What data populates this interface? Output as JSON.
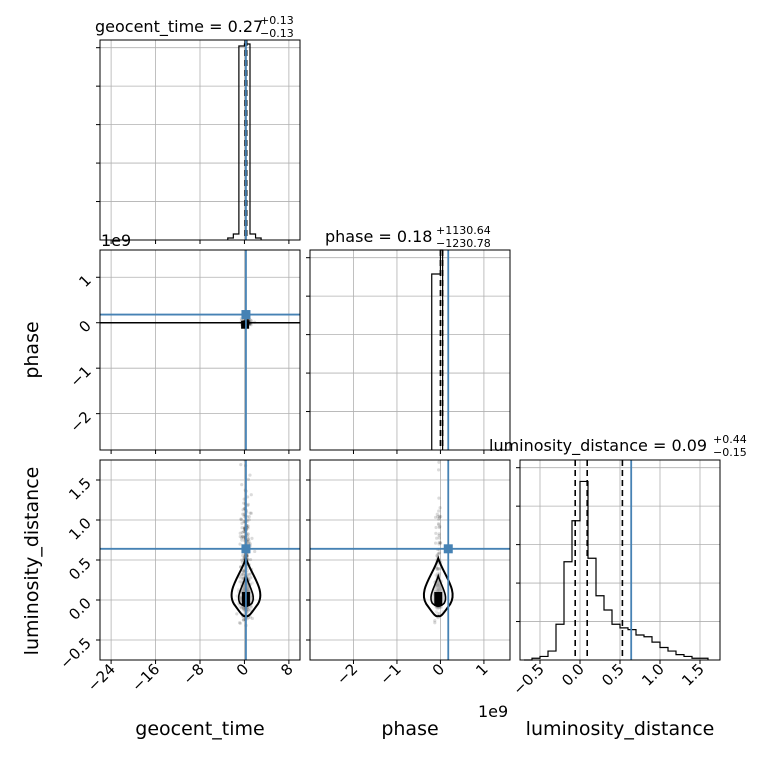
{
  "chart_data": {
    "type": "corner",
    "parameters": [
      "geocent_time",
      "phase",
      "luminosity_distance"
    ],
    "truths": {
      "geocent_time": 0.27,
      "phase": 0.18,
      "luminosity_distance": 0.64
    },
    "truth_color": "#4682b4",
    "titles": [
      {
        "param": "geocent_time",
        "label": "geocent_time = 0.27",
        "plus": "+0.13",
        "minus": "−0.13"
      },
      {
        "param": "phase",
        "label": "phase = 0.18",
        "plus": "+1130.64",
        "minus": "−1230.78"
      },
      {
        "param": "luminosity_distance",
        "label": "luminosity_distance = 0.09",
        "plus": "+0.44",
        "minus": "−0.15"
      }
    ],
    "offset_labels": {
      "geocent_time_hist": "1e9",
      "phase_x": "1e9"
    },
    "axes": {
      "geocent_time": {
        "range": [
          -26,
          10
        ],
        "ticks": [
          -24,
          -16,
          -8,
          0,
          8
        ],
        "tick_labels": [
          "−24",
          "−16",
          "−8",
          "0",
          "8"
        ]
      },
      "phase": {
        "range": [
          -3,
          1.6
        ],
        "ticks": [
          -2,
          -1,
          0,
          1
        ],
        "tick_labels": [
          "−2",
          "−1",
          "0",
          "1"
        ]
      },
      "phase_y": {
        "range": [
          -2.8,
          1.6
        ],
        "ticks": [
          -2,
          -1,
          0,
          1
        ],
        "tick_labels": [
          "−2",
          "−1",
          "0",
          "1"
        ]
      },
      "luminosity_distance": {
        "range": [
          -0.75,
          1.75
        ],
        "ticks": [
          -0.5,
          0.0,
          0.5,
          1.0,
          1.5
        ],
        "tick_labels": [
          "−0.5",
          "0.0",
          "0.5",
          "1.0",
          "1.5"
        ]
      }
    },
    "hist_geocent_time": {
      "edges": [
        -3,
        -2,
        -1,
        0,
        1,
        2,
        3
      ],
      "counts": [
        1,
        3,
        97,
        98,
        3,
        1
      ],
      "ymax": 100,
      "quantiles": [
        0.14,
        0.27,
        0.4
      ]
    },
    "hist_phase": {
      "edges": [
        -0.2,
        0.0,
        0.05
      ],
      "counts": [
        88,
        100
      ],
      "ymax": 100,
      "quantiles": [
        0.0,
        0.05
      ]
    },
    "hist_luminosity_distance": {
      "edges": [
        -0.7,
        -0.6,
        -0.5,
        -0.4,
        -0.3,
        -0.2,
        -0.1,
        0.0,
        0.1,
        0.2,
        0.3,
        0.4,
        0.5,
        0.6,
        0.7,
        0.8,
        0.9,
        1.0,
        1.1,
        1.2,
        1.3,
        1.4,
        1.5,
        1.6
      ],
      "counts": [
        0,
        1,
        2,
        5,
        20,
        55,
        78,
        100,
        57,
        36,
        28,
        20,
        18,
        17,
        14,
        13,
        10,
        7,
        5,
        3,
        2,
        1,
        1
      ],
      "ymax": 112,
      "quantiles": [
        -0.06,
        0.09,
        0.53
      ]
    },
    "axis_labels": {
      "x": [
        "geocent_time",
        "phase",
        "luminosity_distance"
      ],
      "y": [
        "phase",
        "luminosity_distance"
      ]
    }
  }
}
